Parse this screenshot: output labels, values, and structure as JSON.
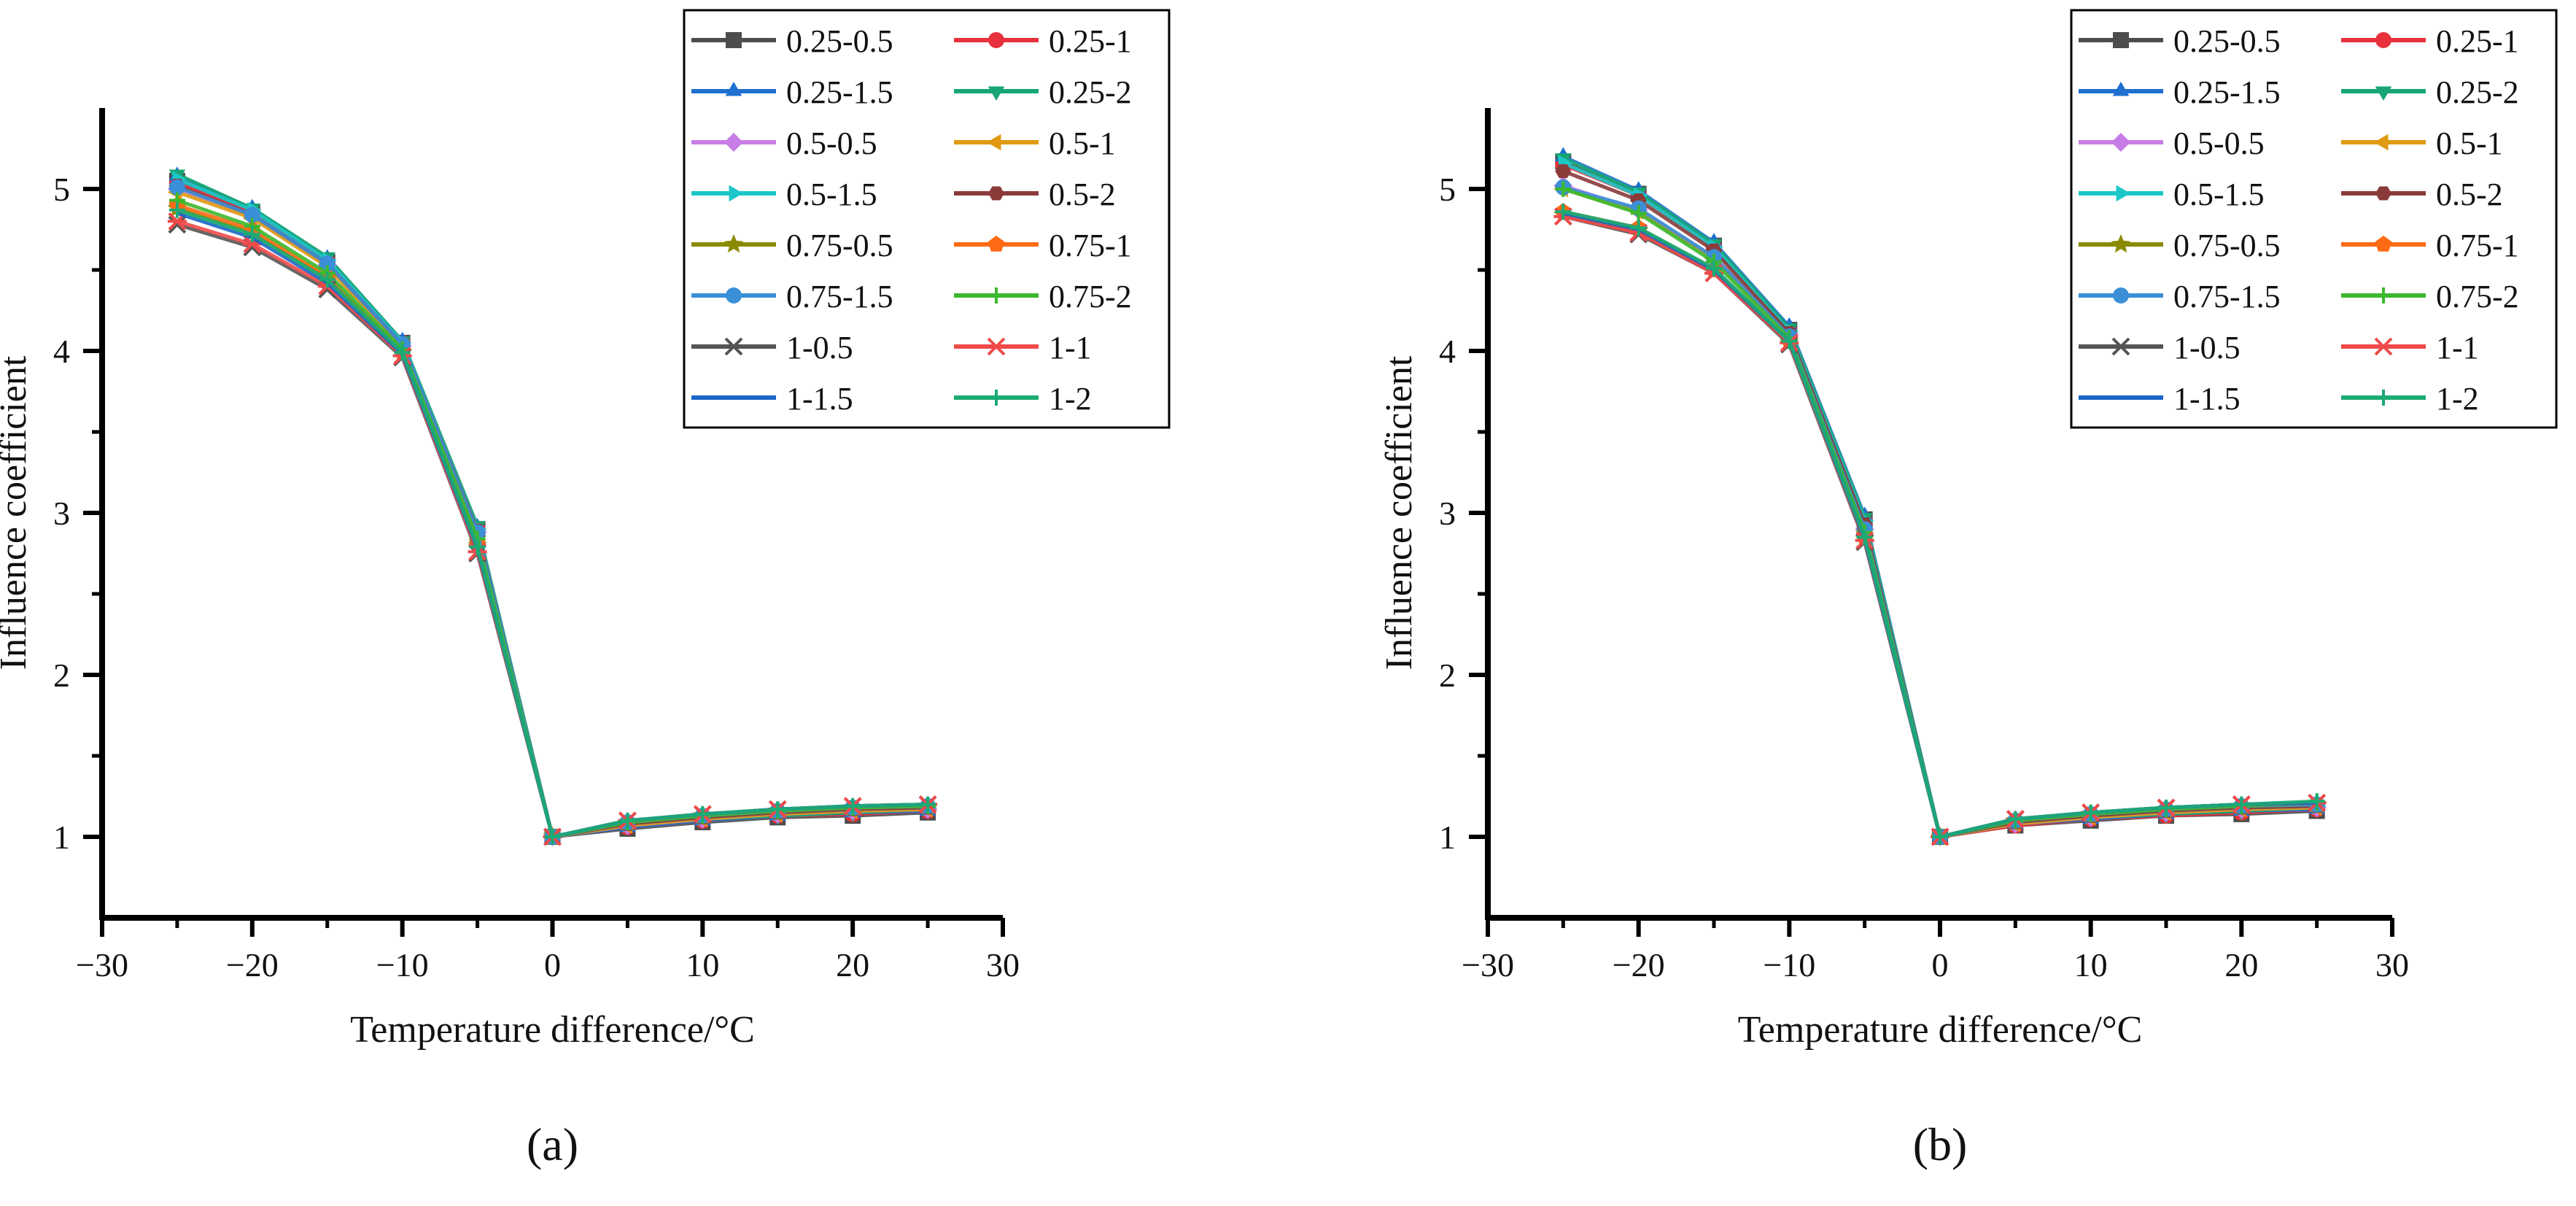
{
  "figure": {
    "panels": [
      "(a)",
      "(b)"
    ]
  },
  "series_styles": [
    {
      "name": "0.25-0.5",
      "color": "#4d4d4d",
      "marker": "square"
    },
    {
      "name": "0.25-1",
      "color": "#e8313c",
      "marker": "circle"
    },
    {
      "name": "0.25-1.5",
      "color": "#1f6fd1",
      "marker": "triangle-up"
    },
    {
      "name": "0.25-2",
      "color": "#17a673",
      "marker": "triangle-down"
    },
    {
      "name": "0.5-0.5",
      "color": "#c77de6",
      "marker": "diamond"
    },
    {
      "name": "0.5-1",
      "color": "#e09a12",
      "marker": "triangle-left"
    },
    {
      "name": "0.5-1.5",
      "color": "#1cc7c7",
      "marker": "triangle-right"
    },
    {
      "name": "0.5-2",
      "color": "#8b3a3a",
      "marker": "hexagon"
    },
    {
      "name": "0.75-0.5",
      "color": "#8a8a00",
      "marker": "star"
    },
    {
      "name": "0.75-1",
      "color": "#ff6a13",
      "marker": "pentagon"
    },
    {
      "name": "0.75-1.5",
      "color": "#3a8fd6",
      "marker": "circle"
    },
    {
      "name": "0.75-2",
      "color": "#3cb82e",
      "marker": "plus"
    },
    {
      "name": "1-0.5",
      "color": "#555555",
      "marker": "x"
    },
    {
      "name": "1-1",
      "color": "#ef4a4a",
      "marker": "asterisk"
    },
    {
      "name": "1-1.5",
      "color": "#1a66c9",
      "marker": "none"
    },
    {
      "name": "1-2",
      "color": "#1bab73",
      "marker": "plus"
    }
  ],
  "chart_data": [
    {
      "type": "line",
      "panel_label": "(a)",
      "xlabel": "Temperature difference/°C",
      "ylabel": "Influence coefficient",
      "xlim": [
        -30,
        30
      ],
      "ylim": [
        0.5,
        5.5
      ],
      "xticks": [
        -30,
        -20,
        -10,
        0,
        10,
        20,
        30
      ],
      "xtick_labels": [
        "−30",
        "−20",
        "−10",
        "0",
        "10",
        "20",
        "30"
      ],
      "yticks": [
        1,
        2,
        3,
        4,
        5
      ],
      "ytick_labels": [
        "1",
        "2",
        "3",
        "4",
        "5"
      ],
      "legend_position": "top-right",
      "x": [
        -25,
        -20,
        -15,
        -10,
        -5,
        0,
        5,
        10,
        15,
        20,
        25
      ],
      "series": [
        {
          "name": "0.25-0.5",
          "values": [
            5.05,
            4.86,
            4.55,
            4.05,
            2.9,
            1.0,
            1.05,
            1.09,
            1.12,
            1.13,
            1.15
          ]
        },
        {
          "name": "0.25-1",
          "values": [
            5.04,
            4.85,
            4.55,
            4.05,
            2.9,
            1.0,
            1.06,
            1.1,
            1.13,
            1.14,
            1.16
          ]
        },
        {
          "name": "0.25-1.5",
          "values": [
            5.08,
            4.88,
            4.57,
            4.06,
            2.91,
            1.0,
            1.06,
            1.1,
            1.13,
            1.15,
            1.16
          ]
        },
        {
          "name": "0.25-2",
          "values": [
            5.09,
            4.88,
            4.58,
            4.06,
            2.92,
            1.0,
            1.07,
            1.11,
            1.13,
            1.15,
            1.17
          ]
        },
        {
          "name": "0.5-0.5",
          "values": [
            5.0,
            4.83,
            4.53,
            4.03,
            2.88,
            1.0,
            1.07,
            1.11,
            1.14,
            1.16,
            1.17
          ]
        },
        {
          "name": "0.5-1",
          "values": [
            4.98,
            4.82,
            4.52,
            4.02,
            2.87,
            1.0,
            1.07,
            1.11,
            1.14,
            1.16,
            1.17
          ]
        },
        {
          "name": "0.5-1.5",
          "values": [
            5.06,
            4.87,
            4.56,
            4.05,
            2.9,
            1.0,
            1.08,
            1.12,
            1.15,
            1.17,
            1.18
          ]
        },
        {
          "name": "0.5-2",
          "values": [
            5.02,
            4.84,
            4.54,
            4.04,
            2.89,
            1.0,
            1.08,
            1.12,
            1.15,
            1.17,
            1.18
          ]
        },
        {
          "name": "0.75-0.5",
          "values": [
            4.88,
            4.73,
            4.45,
            3.99,
            2.8,
            1.0,
            1.09,
            1.13,
            1.16,
            1.18,
            1.19
          ]
        },
        {
          "name": "0.75-1",
          "values": [
            4.9,
            4.75,
            4.46,
            4.0,
            2.82,
            1.0,
            1.09,
            1.13,
            1.16,
            1.18,
            1.19
          ]
        },
        {
          "name": "0.75-1.5",
          "values": [
            5.01,
            4.84,
            4.54,
            4.04,
            2.88,
            1.0,
            1.09,
            1.13,
            1.16,
            1.18,
            1.19
          ]
        },
        {
          "name": "0.75-2",
          "values": [
            4.93,
            4.77,
            4.48,
            4.01,
            2.84,
            1.0,
            1.09,
            1.13,
            1.16,
            1.18,
            1.19
          ]
        },
        {
          "name": "1-0.5",
          "values": [
            4.78,
            4.64,
            4.38,
            3.96,
            2.75,
            1.0,
            1.1,
            1.14,
            1.17,
            1.19,
            1.2
          ]
        },
        {
          "name": "1-1",
          "values": [
            4.8,
            4.66,
            4.4,
            3.97,
            2.76,
            1.0,
            1.1,
            1.14,
            1.17,
            1.19,
            1.2
          ]
        },
        {
          "name": "1-1.5",
          "values": [
            4.85,
            4.7,
            4.42,
            3.98,
            2.78,
            1.0,
            1.1,
            1.14,
            1.17,
            1.19,
            1.2
          ]
        },
        {
          "name": "1-2",
          "values": [
            4.87,
            4.72,
            4.44,
            3.99,
            2.79,
            1.0,
            1.1,
            1.14,
            1.17,
            1.19,
            1.2
          ]
        }
      ]
    },
    {
      "type": "line",
      "panel_label": "(b)",
      "xlabel": "Temperature difference/°C",
      "ylabel": "Influence coefficient",
      "xlim": [
        -30,
        30
      ],
      "ylim": [
        0.5,
        5.5
      ],
      "xticks": [
        -30,
        -20,
        -10,
        0,
        10,
        20,
        30
      ],
      "xtick_labels": [
        "−30",
        "−20",
        "−10",
        "0",
        "10",
        "20",
        "30"
      ],
      "yticks": [
        1,
        2,
        3,
        4,
        5
      ],
      "ytick_labels": [
        "1",
        "2",
        "3",
        "4",
        "5"
      ],
      "legend_position": "top-right",
      "x": [
        -25,
        -20,
        -15,
        -10,
        -5,
        0,
        5,
        10,
        15,
        20,
        25
      ],
      "series": [
        {
          "name": "0.25-0.5",
          "values": [
            5.17,
            4.97,
            4.65,
            4.13,
            2.96,
            1.0,
            1.07,
            1.1,
            1.13,
            1.14,
            1.16
          ]
        },
        {
          "name": "0.25-1",
          "values": [
            5.15,
            4.96,
            4.64,
            4.12,
            2.95,
            1.0,
            1.07,
            1.11,
            1.13,
            1.15,
            1.17
          ]
        },
        {
          "name": "0.25-1.5",
          "values": [
            5.2,
            4.99,
            4.67,
            4.15,
            2.98,
            1.0,
            1.08,
            1.11,
            1.14,
            1.16,
            1.17
          ]
        },
        {
          "name": "0.25-2",
          "values": [
            5.19,
            4.98,
            4.66,
            4.14,
            2.97,
            1.0,
            1.08,
            1.12,
            1.14,
            1.16,
            1.18
          ]
        },
        {
          "name": "0.5-0.5",
          "values": [
            5.02,
            4.87,
            4.58,
            4.1,
            2.9,
            1.0,
            1.08,
            1.12,
            1.15,
            1.17,
            1.18
          ]
        },
        {
          "name": "0.5-1",
          "values": [
            5.0,
            4.86,
            4.57,
            4.09,
            2.89,
            1.0,
            1.08,
            1.12,
            1.15,
            1.17,
            1.18
          ]
        },
        {
          "name": "0.5-1.5",
          "values": [
            5.16,
            4.96,
            4.64,
            4.12,
            2.95,
            1.0,
            1.09,
            1.13,
            1.16,
            1.18,
            1.19
          ]
        },
        {
          "name": "0.5-2",
          "values": [
            5.11,
            4.93,
            4.62,
            4.11,
            2.93,
            1.0,
            1.09,
            1.13,
            1.16,
            1.18,
            1.19
          ]
        },
        {
          "name": "0.75-0.5",
          "values": [
            4.84,
            4.74,
            4.49,
            4.05,
            2.84,
            1.0,
            1.1,
            1.14,
            1.17,
            1.19,
            1.2
          ]
        },
        {
          "name": "0.75-1",
          "values": [
            4.86,
            4.76,
            4.5,
            4.06,
            2.85,
            1.0,
            1.1,
            1.14,
            1.17,
            1.19,
            1.2
          ]
        },
        {
          "name": "0.75-1.5",
          "values": [
            5.01,
            4.88,
            4.58,
            4.09,
            2.9,
            1.0,
            1.1,
            1.14,
            1.17,
            1.19,
            1.2
          ]
        },
        {
          "name": "0.75-2",
          "values": [
            5.0,
            4.85,
            4.55,
            4.08,
            2.88,
            1.0,
            1.1,
            1.14,
            1.17,
            1.19,
            1.21
          ]
        },
        {
          "name": "1-0.5",
          "values": [
            4.83,
            4.72,
            4.48,
            4.04,
            2.82,
            1.0,
            1.11,
            1.15,
            1.18,
            1.2,
            1.21
          ]
        },
        {
          "name": "1-1",
          "values": [
            4.83,
            4.73,
            4.48,
            4.05,
            2.83,
            1.0,
            1.11,
            1.15,
            1.18,
            1.2,
            1.21
          ]
        },
        {
          "name": "1-1.5",
          "values": [
            4.85,
            4.75,
            4.5,
            4.06,
            2.84,
            1.0,
            1.11,
            1.15,
            1.18,
            1.2,
            1.21
          ]
        },
        {
          "name": "1-2",
          "values": [
            4.86,
            4.76,
            4.51,
            4.06,
            2.85,
            1.0,
            1.11,
            1.15,
            1.18,
            1.2,
            1.22
          ]
        }
      ]
    }
  ]
}
